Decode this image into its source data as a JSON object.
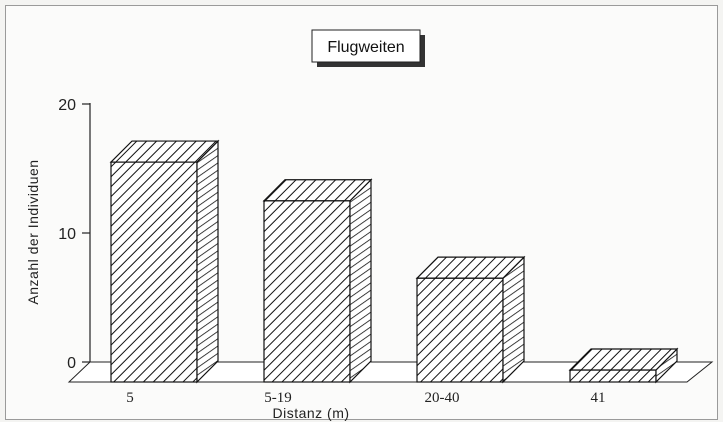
{
  "chart_data": {
    "type": "bar",
    "title": "Flugweiten",
    "xlabel": "Distanz (m)",
    "ylabel": "Anzahl der Individuen",
    "categories": [
      "5",
      "5-19",
      "20-40",
      "41"
    ],
    "values": [
      15.5,
      12.5,
      6.5,
      -0.6
    ],
    "ylim": [
      0,
      20
    ],
    "yticks": [
      "0",
      "10",
      "20"
    ],
    "style": "3d-hatched",
    "grid": false,
    "legend": "none"
  }
}
